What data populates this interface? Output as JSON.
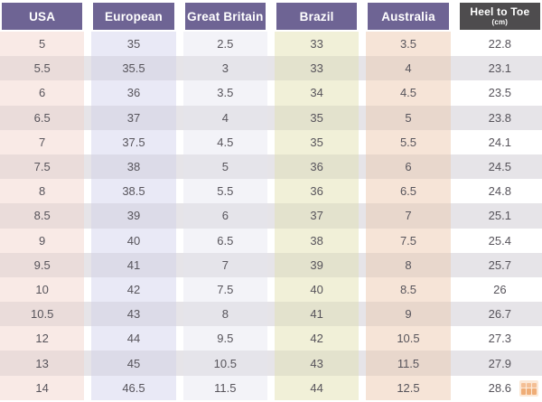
{
  "header": {
    "cells": [
      {
        "label": "USA"
      },
      {
        "label": "European"
      },
      {
        "label": "Great Britain"
      },
      {
        "label": "Brazil"
      },
      {
        "label": "Australia"
      },
      {
        "label": "Heel to Toe",
        "sublabel": "(cm)"
      }
    ]
  },
  "chart_data": {
    "type": "table",
    "columns": [
      "USA",
      "European",
      "Great Britain",
      "Brazil",
      "Australia",
      "Heel to Toe (cm)"
    ],
    "rows": [
      [
        "5",
        "35",
        "2.5",
        "33",
        "3.5",
        "22.8"
      ],
      [
        "5.5",
        "35.5",
        "3",
        "33",
        "4",
        "23.1"
      ],
      [
        "6",
        "36",
        "3.5",
        "34",
        "4.5",
        "23.5"
      ],
      [
        "6.5",
        "37",
        "4",
        "35",
        "5",
        "23.8"
      ],
      [
        "7",
        "37.5",
        "4.5",
        "35",
        "5.5",
        "24.1"
      ],
      [
        "7.5",
        "38",
        "5",
        "36",
        "6",
        "24.5"
      ],
      [
        "8",
        "38.5",
        "5.5",
        "36",
        "6.5",
        "24.8"
      ],
      [
        "8.5",
        "39",
        "6",
        "37",
        "7",
        "25.1"
      ],
      [
        "9",
        "40",
        "6.5",
        "38",
        "7.5",
        "25.4"
      ],
      [
        "9.5",
        "41",
        "7",
        "39",
        "8",
        "25.7"
      ],
      [
        "10",
        "42",
        "7.5",
        "40",
        "8.5",
        "26"
      ],
      [
        "10.5",
        "43",
        "8",
        "41",
        "9",
        "26.7"
      ],
      [
        "12",
        "44",
        "9.5",
        "42",
        "10.5",
        "27.3"
      ],
      [
        "13",
        "45",
        "10.5",
        "43",
        "11.5",
        "27.9"
      ],
      [
        "14",
        "46.5",
        "11.5",
        "44",
        "12.5",
        "28.6"
      ]
    ]
  },
  "colors": {
    "header_bg": "#6e6494",
    "header_dark_bg": "#4e4c4e",
    "header_text": "#ffffff",
    "cell_text": "#57545b",
    "row_even_bg": "#e6e4e8",
    "col_usa": "#f9eae6",
    "col_european": "#e9e9f6",
    "col_great_britain": "#f3f3f8",
    "col_brazil": "#f1f0d8",
    "col_australia": "#f6e4d7",
    "watermark_orange": "#e98c42"
  },
  "watermark": {
    "icon": "orange-grid-logo-icon"
  }
}
